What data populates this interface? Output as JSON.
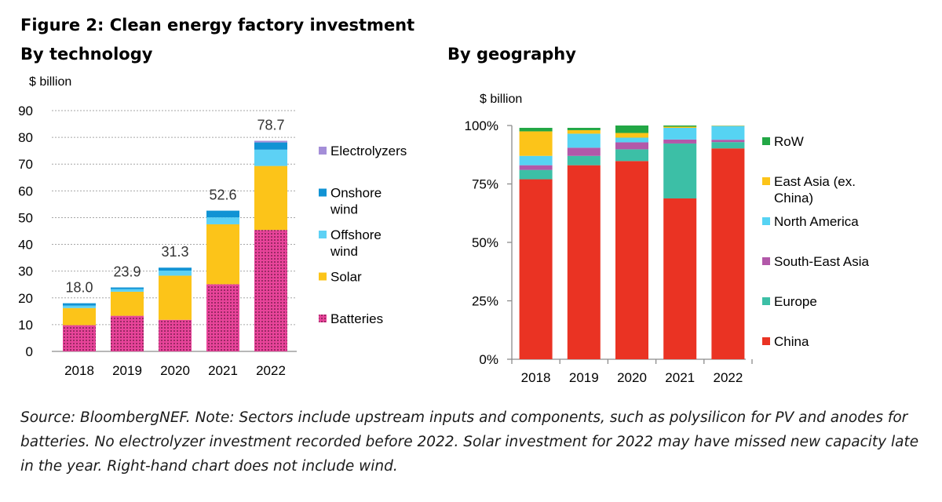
{
  "figure_title": "Figure 2: Clean energy factory investment",
  "source_note": "Source: BloombergNEF. Note: Sectors include upstream inputs and components, such as polysilicon for PV and anodes for batteries. No electrolyzer investment recorded before 2022. Solar investment for 2022 may have missed new capacity late in the year. Right-hand chart does not include wind.",
  "chart_data": [
    {
      "type": "bar",
      "stacked": true,
      "title": "By technology",
      "ylabel": "$ billion",
      "xlabel": "",
      "ylim": [
        0,
        90
      ],
      "yticks": [
        0,
        10,
        20,
        30,
        40,
        50,
        60,
        70,
        80,
        90
      ],
      "grid": true,
      "legend_position": "right",
      "categories": [
        "2018",
        "2019",
        "2020",
        "2021",
        "2022"
      ],
      "totals": [
        "18.0",
        "23.9",
        "31.3",
        "52.6",
        "78.7"
      ],
      "series": [
        {
          "name": "Batteries",
          "color": "#e8449a",
          "pattern": "dotted",
          "values": [
            9.8,
            13.3,
            11.8,
            25.1,
            45.4
          ]
        },
        {
          "name": "Solar",
          "color": "#fcc419",
          "values": [
            6.4,
            9.0,
            16.5,
            22.4,
            23.9
          ]
        },
        {
          "name": "Offshore wind",
          "color": "#5dd1f5",
          "values": [
            0.9,
            1.0,
            1.9,
            2.6,
            6.1
          ]
        },
        {
          "name": "Onshore wind",
          "color": "#1193d4",
          "values": [
            0.9,
            0.6,
            1.1,
            2.5,
            2.7
          ]
        },
        {
          "name": "Electrolyzers",
          "color": "#a48ed8",
          "values": [
            0,
            0,
            0,
            0,
            0.6
          ]
        }
      ],
      "legend_order": [
        "Electrolyzers",
        "Onshore wind",
        "Offshore wind",
        "Solar",
        "Batteries"
      ]
    },
    {
      "type": "bar",
      "stacked": true,
      "percent": true,
      "title": "By geography",
      "ylabel": "$ billion",
      "xlabel": "",
      "ylim": [
        0,
        100
      ],
      "yticks": [
        0,
        25,
        50,
        75,
        100
      ],
      "ytick_labels": [
        "0%",
        "25%",
        "50%",
        "75%",
        "100%"
      ],
      "grid": false,
      "legend_position": "right",
      "categories": [
        "2018",
        "2019",
        "2020",
        "2021",
        "2022"
      ],
      "series": [
        {
          "name": "China",
          "color": "#ea3323",
          "values": [
            77.0,
            83.0,
            84.8,
            68.8,
            90.2
          ]
        },
        {
          "name": "Europe",
          "color": "#3cbfa6",
          "values": [
            4.0,
            4.0,
            5.0,
            23.5,
            2.7
          ]
        },
        {
          "name": "South-East Asia",
          "color": "#b258a9",
          "values": [
            2.0,
            3.5,
            3.0,
            1.7,
            1.0
          ]
        },
        {
          "name": "North America",
          "color": "#56d3f3",
          "values": [
            4.0,
            6.0,
            2.0,
            5.0,
            6.0
          ]
        },
        {
          "name": "East Asia (ex. China)",
          "color": "#fcc419",
          "values": [
            10.5,
            1.5,
            2.0,
            0.5,
            0.1
          ]
        },
        {
          "name": "RoW",
          "color": "#22a745",
          "values": [
            1.5,
            1.0,
            3.2,
            0.5,
            0
          ]
        }
      ],
      "legend_order": [
        "RoW",
        "East Asia (ex. China)",
        "North America",
        "South-East Asia",
        "Europe",
        "China"
      ]
    }
  ]
}
